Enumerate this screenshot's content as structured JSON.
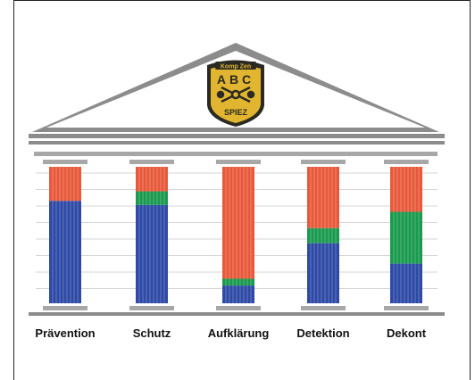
{
  "logo": {
    "top_text": "Komp Zen",
    "main_text": "ABC",
    "bottom_text": "SPIEZ"
  },
  "colors": {
    "orange": "#e8593b",
    "green": "#1a9a4e",
    "blue": "#2e49a6",
    "roof": "#8c8c8c",
    "beam": "#a7a7a7",
    "badge_gold": "#e2b531",
    "badge_dark": "#2a2a22"
  },
  "pillars": [
    {
      "label": "Prävention",
      "segments": [
        {
          "color": "orange",
          "share": 0.25
        },
        {
          "color": "blue",
          "share": 0.75
        }
      ]
    },
    {
      "label": "Schutz",
      "segments": [
        {
          "color": "orange",
          "share": 0.18
        },
        {
          "color": "green",
          "share": 0.1
        },
        {
          "color": "blue",
          "share": 0.72
        }
      ]
    },
    {
      "label": "Aufklärung",
      "segments": [
        {
          "color": "orange",
          "share": 0.82
        },
        {
          "color": "green",
          "share": 0.05
        },
        {
          "color": "blue",
          "share": 0.13
        }
      ]
    },
    {
      "label": "Detektion",
      "segments": [
        {
          "color": "orange",
          "share": 0.45
        },
        {
          "color": "green",
          "share": 0.11
        },
        {
          "color": "blue",
          "share": 0.44
        }
      ]
    },
    {
      "label": "Dekont",
      "segments": [
        {
          "color": "orange",
          "share": 0.33
        },
        {
          "color": "green",
          "share": 0.38
        },
        {
          "color": "blue",
          "share": 0.29
        }
      ]
    }
  ]
}
